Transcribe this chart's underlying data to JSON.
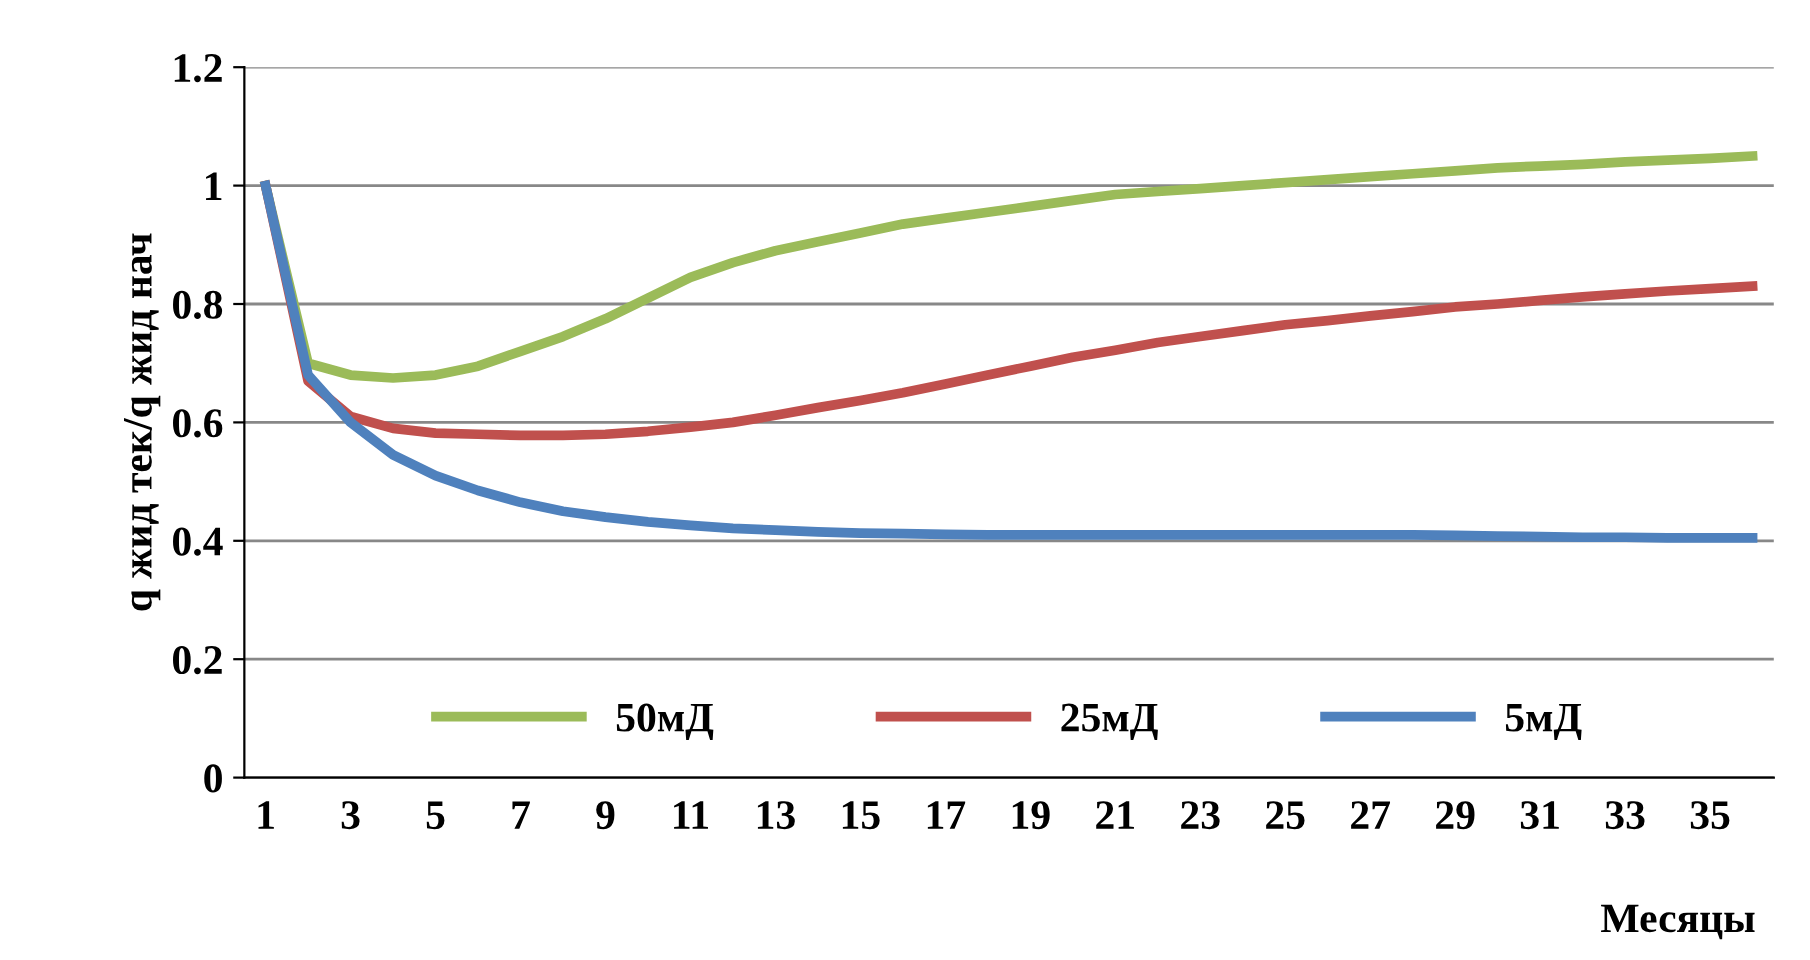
{
  "chart_data": {
    "type": "line",
    "xlabel": "Месяцы",
    "ylabel": "q жид тек/q жид нач",
    "categories": [
      "1",
      null,
      "3",
      null,
      "5",
      null,
      "7",
      null,
      "9",
      null,
      "11",
      null,
      "13",
      null,
      "15",
      null,
      "17",
      null,
      "19",
      null,
      "21",
      null,
      "23",
      null,
      "25",
      null,
      "27",
      null,
      "29",
      null,
      "31",
      null,
      "33",
      null,
      "35",
      null
    ],
    "series": [
      {
        "name": "50мД",
        "color": "#9bbb59",
        "values": [
          1.0,
          0.7,
          0.68,
          0.675,
          0.68,
          0.695,
          0.72,
          0.745,
          0.775,
          0.81,
          0.845,
          0.87,
          0.89,
          0.905,
          0.92,
          0.935,
          0.945,
          0.955,
          0.965,
          0.975,
          0.985,
          0.99,
          0.995,
          1.0,
          1.005,
          1.01,
          1.015,
          1.02,
          1.025,
          1.03,
          1.033,
          1.036,
          1.04,
          1.043,
          1.046,
          1.05
        ]
      },
      {
        "name": "25мД",
        "color": "#c0504d",
        "values": [
          1.0,
          0.67,
          0.61,
          0.59,
          0.582,
          0.58,
          0.578,
          0.578,
          0.58,
          0.585,
          0.592,
          0.6,
          0.612,
          0.625,
          0.637,
          0.65,
          0.665,
          0.68,
          0.695,
          0.71,
          0.722,
          0.735,
          0.745,
          0.755,
          0.765,
          0.772,
          0.78,
          0.787,
          0.795,
          0.8,
          0.806,
          0.812,
          0.817,
          0.822,
          0.826,
          0.83
        ]
      },
      {
        "name": "5мД",
        "color": "#4f81bd",
        "values": [
          1.0,
          0.68,
          0.6,
          0.545,
          0.51,
          0.485,
          0.465,
          0.45,
          0.44,
          0.432,
          0.426,
          0.421,
          0.418,
          0.415,
          0.413,
          0.412,
          0.411,
          0.41,
          0.41,
          0.41,
          0.41,
          0.41,
          0.41,
          0.41,
          0.41,
          0.41,
          0.41,
          0.41,
          0.409,
          0.408,
          0.407,
          0.406,
          0.406,
          0.405,
          0.405,
          0.405
        ]
      }
    ],
    "ylim": [
      0,
      1.2
    ],
    "yticks": [
      0,
      0.2,
      0.4,
      0.6,
      0.8,
      1,
      1.2
    ],
    "grid": "y",
    "legend": "bottom",
    "marker": "none",
    "line_style": "solid"
  }
}
